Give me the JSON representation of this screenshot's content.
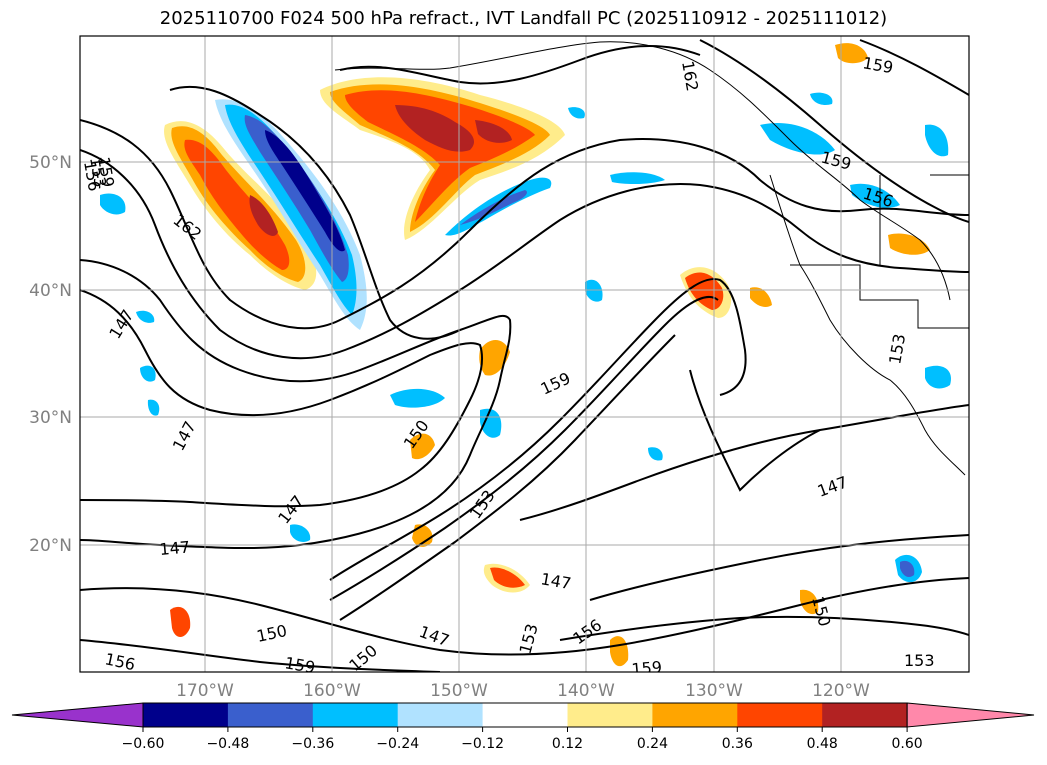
{
  "title": "2025110700 F024 500 hPa refract., IVT Landfall PC (2025110912 - 2025111012)",
  "map": {
    "lat_ticks": [
      "50°N",
      "40°N",
      "30°N",
      "20°N"
    ],
    "lon_ticks": [
      "170°W",
      "160°W",
      "150°W",
      "140°W",
      "130°W",
      "120°W"
    ],
    "contour_labels": [
      {
        "text": "162"
      },
      {
        "text": "159"
      },
      {
        "text": "159"
      },
      {
        "text": "156"
      },
      {
        "text": "159"
      },
      {
        "text": "153"
      },
      {
        "text": "156"
      },
      {
        "text": "162"
      },
      {
        "text": "147"
      },
      {
        "text": "147"
      },
      {
        "text": "159"
      },
      {
        "text": "150"
      },
      {
        "text": "153"
      },
      {
        "text": "147"
      },
      {
        "text": "147"
      },
      {
        "text": "147"
      },
      {
        "text": "153"
      },
      {
        "text": "147"
      },
      {
        "text": "147"
      },
      {
        "text": "150"
      },
      {
        "text": "156"
      },
      {
        "text": "150"
      },
      {
        "text": "159"
      },
      {
        "text": "156"
      },
      {
        "text": "153"
      },
      {
        "text": "159"
      },
      {
        "text": "153"
      },
      {
        "text": "150"
      }
    ]
  },
  "colorbar": {
    "ticks": [
      "−0.60",
      "−0.48",
      "−0.36",
      "−0.24",
      "−0.12",
      "0.12",
      "0.24",
      "0.36",
      "0.48",
      "0.60"
    ],
    "colors": [
      "#9932cc",
      "#00008b",
      "#3a5fcd",
      "#00bfff",
      "#b0e2ff",
      "#ffffff",
      "#ffec8b",
      "#ffa500",
      "#ff4500",
      "#b22222",
      "#ff88aa"
    ]
  }
}
